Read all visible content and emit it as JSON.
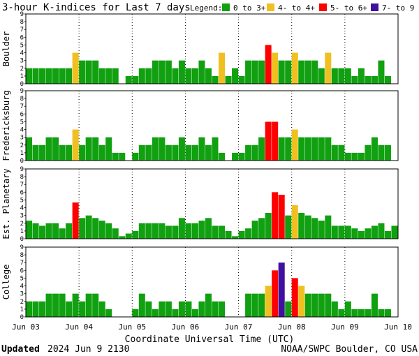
{
  "title": "3-hour K-indices for Last 7 days",
  "legend": {
    "label": "Legend:",
    "items": [
      {
        "label": "0 to 3+",
        "color": "#10a010"
      },
      {
        "label": "4- to 4+",
        "color": "#f0c020"
      },
      {
        "label": "5- to 6+",
        "color": "#ff0000"
      },
      {
        "label": "7- to 9",
        "color": "#4010a0"
      }
    ]
  },
  "xlabel": "Coordinate Universal Time (UTC)",
  "footer": {
    "updated_label": "Updated",
    "updated_value": "2024 Jun  9 2130",
    "credit": "NOAA/SWPC Boulder, CO USA"
  },
  "chart_data": [
    {
      "type": "bar",
      "ylabel": "Boulder",
      "ylim": [
        0,
        9
      ],
      "x_ticks": [
        "Jun 03",
        "Jun 04",
        "Jun 05",
        "Jun 06",
        "Jun 07",
        "Jun 08",
        "Jun 09",
        "Jun 10"
      ],
      "grid": true,
      "values": [
        2,
        2,
        2,
        2,
        2,
        2,
        2,
        4,
        3,
        3,
        3,
        2,
        2,
        2,
        0,
        1,
        1,
        2,
        2,
        3,
        3,
        3,
        2,
        3,
        2,
        2,
        3,
        2,
        1,
        4,
        1,
        2,
        1,
        3,
        3,
        3,
        5,
        4,
        3,
        3,
        4,
        3,
        3,
        3,
        2,
        4,
        2,
        2,
        2,
        1,
        2,
        1,
        1,
        3,
        1,
        0
      ]
    },
    {
      "type": "bar",
      "ylabel": "Fredericksburg",
      "ylim": [
        0,
        9
      ],
      "x_ticks": [
        "Jun 03",
        "Jun 04",
        "Jun 05",
        "Jun 06",
        "Jun 07",
        "Jun 08",
        "Jun 09",
        "Jun 10"
      ],
      "grid": true,
      "values": [
        3,
        2,
        2,
        3,
        3,
        2,
        2,
        4,
        2,
        3,
        3,
        2,
        3,
        1,
        1,
        0,
        1,
        2,
        2,
        3,
        3,
        2,
        2,
        3,
        2,
        2,
        3,
        2,
        3,
        1,
        0,
        1,
        1,
        2,
        2,
        3,
        5,
        5,
        3,
        3,
        4,
        3,
        3,
        3,
        3,
        3,
        2,
        2,
        1,
        1,
        1,
        2,
        3,
        2,
        2,
        0
      ]
    },
    {
      "type": "bar",
      "ylabel": "Est. Planetary",
      "ylim": [
        0,
        9
      ],
      "x_ticks": [
        "Jun 03",
        "Jun 04",
        "Jun 05",
        "Jun 06",
        "Jun 07",
        "Jun 08",
        "Jun 09",
        "Jun 10"
      ],
      "grid": true,
      "values": [
        2.33,
        2,
        1.67,
        2,
        2,
        1.33,
        2,
        4.67,
        2.67,
        3,
        2.67,
        2.33,
        2,
        1.33,
        0.33,
        0.67,
        1,
        2,
        2,
        2,
        2,
        1.67,
        1.67,
        2.67,
        2,
        2,
        2.33,
        2.67,
        1.67,
        1.67,
        1,
        0.33,
        1,
        1.33,
        2.33,
        2.67,
        3.33,
        6,
        5.67,
        3,
        4.33,
        3.33,
        3,
        2.67,
        2.33,
        3,
        1.67,
        1.67,
        1.67,
        1.33,
        1,
        1.33,
        1.67,
        2,
        1,
        1.67
      ]
    },
    {
      "type": "bar",
      "ylabel": "College",
      "ylim": [
        0,
        9
      ],
      "x_ticks": [
        "Jun 03",
        "Jun 04",
        "Jun 05",
        "Jun 06",
        "Jun 07",
        "Jun 08",
        "Jun 09",
        "Jun 10"
      ],
      "grid": true,
      "values": [
        2,
        2,
        2,
        3,
        3,
        3,
        2,
        3,
        2,
        3,
        3,
        2,
        1,
        0,
        0,
        0,
        1,
        3,
        2,
        1,
        2,
        2,
        1,
        2,
        2,
        1,
        2,
        3,
        2,
        2,
        0,
        0,
        0,
        3,
        3,
        3,
        4,
        6,
        7,
        2,
        5,
        4,
        3,
        3,
        3,
        3,
        2,
        1,
        2,
        1,
        1,
        1,
        3,
        1,
        1,
        0
      ]
    }
  ]
}
